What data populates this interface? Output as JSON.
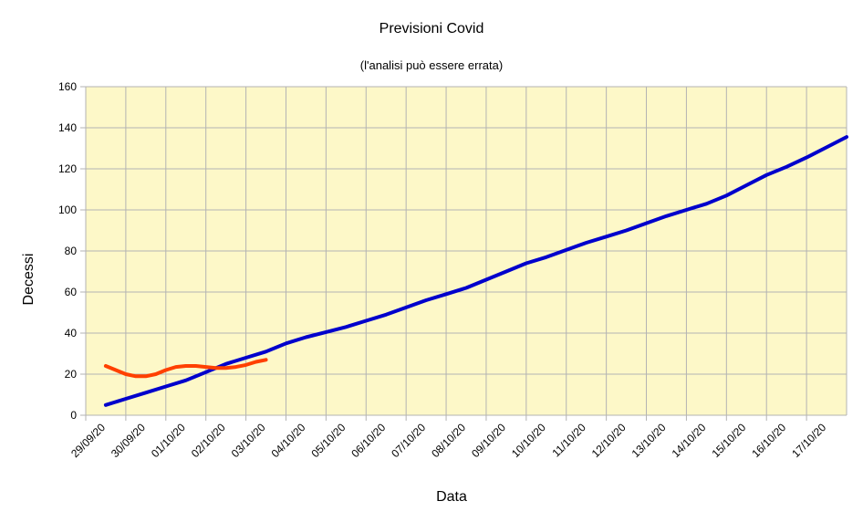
{
  "chart_data": {
    "type": "line",
    "title": "Previsioni Covid",
    "subtitle": "(l'analisi può essere errata)",
    "xlabel": "Data",
    "ylabel": "Decessi",
    "ylim": [
      0,
      160
    ],
    "yticks": [
      0,
      20,
      40,
      60,
      80,
      100,
      120,
      140,
      160
    ],
    "categories": [
      "29/09/20",
      "30/09/20",
      "01/10/20",
      "02/10/20",
      "03/10/20",
      "04/10/20",
      "05/10/20",
      "06/10/20",
      "07/10/20",
      "08/10/20",
      "09/10/20",
      "10/10/20",
      "11/10/20",
      "12/10/20",
      "13/10/20",
      "14/10/20",
      "15/10/20",
      "16/10/20",
      "17/10/20"
    ],
    "grid": true,
    "plot_background": "#fdf8c8",
    "series": [
      {
        "color": "#0000cc",
        "points": [
          [
            0.5,
            5
          ],
          [
            1,
            8
          ],
          [
            1.5,
            11
          ],
          [
            2,
            14
          ],
          [
            2.5,
            17
          ],
          [
            3,
            21
          ],
          [
            3.5,
            25
          ],
          [
            4,
            28
          ],
          [
            4.5,
            31
          ],
          [
            5,
            35
          ],
          [
            5.5,
            38
          ],
          [
            6,
            40.5
          ],
          [
            6.5,
            43
          ],
          [
            7,
            46
          ],
          [
            7.5,
            49
          ],
          [
            8,
            52.5
          ],
          [
            8.5,
            56
          ],
          [
            9,
            59
          ],
          [
            9.5,
            62
          ],
          [
            10,
            66
          ],
          [
            10.5,
            70
          ],
          [
            11,
            74
          ],
          [
            11.5,
            77
          ],
          [
            12,
            80.5
          ],
          [
            12.5,
            84
          ],
          [
            13,
            87
          ],
          [
            13.5,
            90
          ],
          [
            14,
            93.5
          ],
          [
            14.5,
            97
          ],
          [
            15,
            100
          ],
          [
            15.5,
            103
          ],
          [
            16,
            107
          ],
          [
            16.5,
            112
          ],
          [
            17,
            117
          ],
          [
            17.5,
            121
          ],
          [
            18,
            125.5
          ],
          [
            18.5,
            130.5
          ],
          [
            19,
            135.5
          ]
        ]
      },
      {
        "color": "#ff4000",
        "points": [
          [
            0.5,
            24
          ],
          [
            0.75,
            22
          ],
          [
            1,
            20
          ],
          [
            1.25,
            19
          ],
          [
            1.5,
            19
          ],
          [
            1.75,
            20
          ],
          [
            2,
            22
          ],
          [
            2.25,
            23.5
          ],
          [
            2.5,
            24
          ],
          [
            2.75,
            24
          ],
          [
            3,
            23.5
          ],
          [
            3.25,
            23
          ],
          [
            3.5,
            23
          ],
          [
            3.75,
            23.5
          ],
          [
            4,
            24.5
          ],
          [
            4.25,
            26
          ],
          [
            4.5,
            27
          ]
        ]
      }
    ]
  }
}
